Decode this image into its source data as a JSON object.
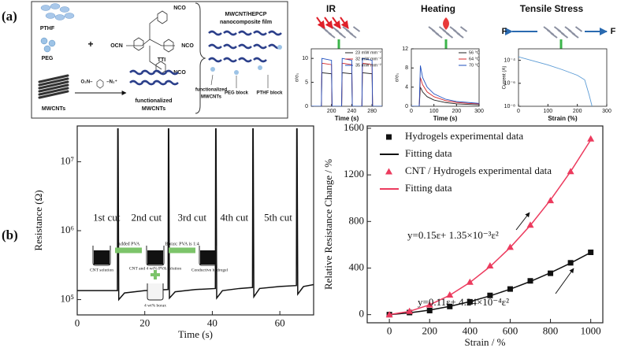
{
  "figure": {
    "panel_a": "(a)",
    "panel_b": "(b)"
  },
  "schematic": {
    "pthf": "PTHF",
    "peg": "PEG",
    "plus": "+",
    "tti": "TTI",
    "ocn": "OCN",
    "nco": [
      "NCO",
      "NCO",
      "NCO"
    ],
    "mwcnts": "MWCNTs",
    "diazonium": [
      "O₂N–",
      "–N₂⁺"
    ],
    "functionalized": [
      "functionalized",
      "MWCNTs"
    ],
    "film": [
      "MWCNT/HEPCP",
      "nanocomposite film"
    ],
    "film_parts": [
      "functionalized",
      "MWCNTs",
      "PEG  block",
      "PTHF block"
    ],
    "stimuli": [
      "IR",
      "Heating",
      "Tensile Stress"
    ],
    "force": [
      "F",
      "F"
    ]
  },
  "chart_data": [
    {
      "type": "line",
      "x": [
        160,
        180,
        181,
        200,
        201,
        220,
        221,
        240,
        241,
        260,
        261,
        280,
        281,
        300
      ],
      "xlim": [
        160,
        300
      ],
      "xticks": [
        200,
        240,
        280
      ],
      "ylim": [
        0,
        12
      ],
      "yticks": [
        0,
        5,
        10
      ],
      "xlabel": "Time (s)",
      "ylabel": "σ/σ₀",
      "series": [
        {
          "name": "23 mW mm⁻²",
          "color": "#222222",
          "values": [
            0,
            0,
            7,
            6.8,
            0,
            0,
            7,
            6.8,
            0,
            0,
            7,
            6.8,
            0,
            0
          ]
        },
        {
          "name": "32 mW mm⁻²",
          "color": "#d62728",
          "values": [
            0,
            0,
            9,
            8.7,
            0,
            0,
            9,
            8.7,
            0,
            0,
            9,
            8.7,
            0,
            0
          ]
        },
        {
          "name": "35 mW mm⁻²",
          "color": "#1f4fbf",
          "values": [
            0,
            0,
            10,
            9.6,
            0,
            0,
            10,
            9.6,
            0,
            0,
            10,
            9.6,
            0,
            0
          ]
        }
      ]
    },
    {
      "type": "line",
      "x": [
        0,
        35,
        40,
        50,
        70,
        100,
        150,
        200,
        250,
        300
      ],
      "xlim": [
        0,
        300
      ],
      "xticks": [
        0,
        100,
        200,
        300
      ],
      "ylim": [
        0,
        12
      ],
      "yticks": [
        0,
        4,
        8,
        12
      ],
      "xlabel": "Time (s)",
      "ylabel": "σ/σ₀",
      "series": [
        {
          "name": "56 °C",
          "color": "#222222",
          "values": [
            0,
            0,
            4,
            3,
            2,
            1.3,
            0.8,
            0.5,
            0.4,
            0.3
          ]
        },
        {
          "name": "64 °C",
          "color": "#d62728",
          "values": [
            0,
            0,
            6,
            4.5,
            3,
            2,
            1.2,
            0.8,
            0.6,
            0.5
          ]
        },
        {
          "name": "70 °C",
          "color": "#1f4fbf",
          "values": [
            0,
            0,
            8.5,
            6,
            4,
            2.6,
            1.5,
            1,
            0.8,
            0.6
          ]
        }
      ]
    },
    {
      "type": "line",
      "log_y": true,
      "x": [
        0,
        50,
        100,
        150,
        200,
        225,
        240,
        250
      ],
      "xlim": [
        0,
        300
      ],
      "xticks": [
        0,
        100,
        200,
        300
      ],
      "ylim": [
        1e-08,
        0.001
      ],
      "yticks": [
        {
          "value": 0.0001,
          "label": "10⁻⁴"
        },
        {
          "value": 1e-06,
          "label": "10⁻⁶"
        },
        {
          "value": 1e-08,
          "label": "10⁻⁸"
        }
      ],
      "xlabel": "Strain (%)",
      "ylabel": "Current (A)",
      "series": [
        {
          "color": "#5b9bd5",
          "values": [
            0.0002,
            9e-05,
            4e-05,
            1.5e-05,
            5e-06,
            2e-06,
            1e-07,
            1e-08
          ]
        }
      ]
    },
    {
      "type": "line",
      "log_y": true,
      "x": [
        0,
        11.9,
        12,
        12.1,
        12.3,
        14,
        20,
        26.9,
        27,
        27.1,
        27.3,
        29,
        35,
        40.9,
        41,
        41.1,
        41.3,
        43,
        48,
        51.9,
        52,
        52.1,
        52.3,
        54,
        60,
        64.9,
        65,
        65.1,
        65.3,
        67,
        70
      ],
      "xlim": [
        0,
        70
      ],
      "xticks": [
        0,
        20,
        40,
        60
      ],
      "ylim": [
        60000,
        33000000
      ],
      "yticks": [
        {
          "value": 100000,
          "label": "10⁵"
        },
        {
          "value": 1000000,
          "label": "10⁶"
        },
        {
          "value": 10000000,
          "label": "10⁷"
        }
      ],
      "xlabel": "Time (s)",
      "ylabel": "Resistance (Ω)",
      "series": [
        {
          "color": "#111111",
          "values": [
            135000,
            135000,
            30000000,
            30000000,
            100000,
            125000,
            135000,
            140000,
            30000000,
            30000000,
            105000,
            130000,
            140000,
            145000,
            30000000,
            30000000,
            105000,
            135000,
            145000,
            150000,
            30000000,
            30000000,
            110000,
            145000,
            155000,
            160000,
            30000000,
            30000000,
            120000,
            155000,
            165000
          ]
        }
      ],
      "annotations": [
        "1st cut",
        "2nd cut",
        "3rd cut",
        "4th cut",
        "5th cut"
      ],
      "inset": {
        "steps": [
          "Added PVA",
          "Borax: PVA is 1:4"
        ],
        "stages": [
          "CNT solution",
          "CNT and 4 wt% PVA solution",
          "Conductive hydrogel"
        ],
        "additive": "4 wt% borax"
      }
    },
    {
      "type": "line",
      "legend": "upper left",
      "x": [
        0,
        100,
        200,
        300,
        400,
        500,
        600,
        700,
        800,
        900,
        1000
      ],
      "xlim": [
        -110,
        1060
      ],
      "xticks": [
        0,
        200,
        400,
        600,
        800,
        1000
      ],
      "ylim": [
        -70,
        1620
      ],
      "yticks": [
        0,
        400,
        800,
        1200,
        1600
      ],
      "xlabel": "Strain / %",
      "ylabel": "Relative Resistance Change / %",
      "series": [
        {
          "name": "Hydrogels experimental data",
          "color": "#111111",
          "marker": "square",
          "line": false,
          "values": [
            0,
            18,
            35,
            70,
            110,
            165,
            220,
            290,
            355,
            445,
            535
          ]
        },
        {
          "name": "Fitting data",
          "color": "#111111",
          "values": [
            0,
            15.2,
            39,
            71.2,
            111.8,
            161,
            218.6,
            284.8,
            359.4,
            442.4,
            534
          ]
        },
        {
          "name": "CNT / Hydrogels experimental data",
          "color": "#ec3b5e",
          "marker": "triangle",
          "line": false,
          "values": [
            0,
            30,
            85,
            170,
            280,
            420,
            580,
            770,
            980,
            1230,
            1510
          ]
        },
        {
          "name": "Fitting data",
          "color": "#ec3b5e",
          "values": [
            0,
            28.5,
            84,
            166.5,
            276,
            412.5,
            576,
            766.5,
            984,
            1228.5,
            1500
          ]
        }
      ],
      "annotations": [
        {
          "text": "y=0.15ε+ 1.35×10⁻³ε²",
          "color": "#e8325a"
        },
        {
          "text": "y=0.11ε+ 4.24×10⁻⁴ε²",
          "color": "#111111"
        }
      ]
    }
  ]
}
